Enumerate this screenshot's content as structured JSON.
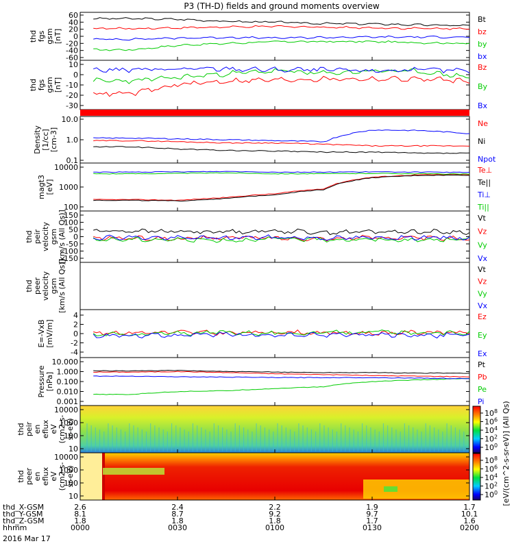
{
  "title": "P3 (TH-D) fields and ground moments overview",
  "date_label": "2016 Mar 17",
  "colors": {
    "black": "#000000",
    "red": "#ff0000",
    "green": "#00cc00",
    "blue": "#0000ff"
  },
  "panels": [
    {
      "id": "fgs-gsm",
      "ylabel": [
        "thd",
        "fgs",
        "gsm",
        "[nT]"
      ],
      "ticks": [
        "60",
        "40",
        "20",
        "0",
        "-20",
        "-40",
        "-60"
      ],
      "legend": [
        {
          "label": "Bt",
          "color": "black"
        },
        {
          "label": "bz",
          "color": "red"
        },
        {
          "label": "by",
          "color": "green"
        },
        {
          "label": "bx",
          "color": "blue"
        }
      ]
    },
    {
      "id": "fgs-dsl",
      "ylabel": [
        "thd",
        "fgs",
        "gsm",
        "[nT]"
      ],
      "ticks": [
        "10",
        "0",
        "-10",
        "-20",
        "-30"
      ],
      "legend": [
        {
          "label": "Bz",
          "color": "red"
        },
        {
          "label": "By",
          "color": "green"
        },
        {
          "label": "Bx",
          "color": "blue"
        }
      ]
    },
    {
      "id": "density",
      "ylabel": [
        "Density",
        "[1/cc]",
        "[cm-3]"
      ],
      "ticks": [
        "10.0",
        "1.0",
        "0.1"
      ],
      "legend": [
        {
          "label": "Ne",
          "color": "red"
        },
        {
          "label": "Ni",
          "color": "black"
        },
        {
          "label": "Npot",
          "color": "blue"
        }
      ]
    },
    {
      "id": "temperature",
      "ylabel": [
        "magt3",
        "[eV]"
      ],
      "ticks": [
        "10000",
        "1000",
        "100"
      ],
      "legend": [
        {
          "label": "Te⊥",
          "color": "red"
        },
        {
          "label": "Te||",
          "color": "black"
        },
        {
          "label": "Ti⊥",
          "color": "blue"
        },
        {
          "label": "Ti||",
          "color": "green"
        }
      ]
    },
    {
      "id": "peir-velocity",
      "ylabel": [
        "thd",
        "peir",
        "velocity",
        "gsm",
        "[km/s (All Qs)]"
      ],
      "ticks": [
        "150",
        "100",
        "50",
        "0",
        "-50",
        "-100",
        "-150"
      ],
      "legend": [
        {
          "label": "Vt",
          "color": "black"
        },
        {
          "label": "Vz",
          "color": "red"
        },
        {
          "label": "Vy",
          "color": "green"
        },
        {
          "label": "Vx",
          "color": "blue"
        }
      ]
    },
    {
      "id": "peer-velocity",
      "ylabel": [
        "thd",
        "peer",
        "velocity",
        "gsm",
        "[km/s (All Qs)]"
      ],
      "ticks": [],
      "legend": [
        {
          "label": "Vt",
          "color": "black"
        },
        {
          "label": "Vz",
          "color": "red"
        },
        {
          "label": "Vy",
          "color": "green"
        },
        {
          "label": "Vx",
          "color": "blue"
        }
      ]
    },
    {
      "id": "efield",
      "ylabel": [
        "E=-VxB",
        "[mV/m]"
      ],
      "ticks": [
        "4",
        "2",
        "0",
        "-2",
        "-4"
      ],
      "legend": [
        {
          "label": "Ez",
          "color": "red"
        },
        {
          "label": "Ey",
          "color": "green"
        },
        {
          "label": "Ex",
          "color": "blue"
        }
      ]
    },
    {
      "id": "pressure",
      "ylabel": [
        "Pressure",
        "[nPa]"
      ],
      "ticks": [
        "10.000",
        "1.000",
        "0.100",
        "0.010",
        "0.001"
      ],
      "legend": [
        {
          "label": "Pt",
          "color": "black"
        },
        {
          "label": "Pb",
          "color": "red"
        },
        {
          "label": "Pe",
          "color": "green"
        },
        {
          "label": "Pi",
          "color": "blue"
        }
      ]
    },
    {
      "id": "peir-eflux",
      "ylabel": [
        "thd",
        "peir",
        "en",
        "eflux",
        "eV",
        "(cm2-s-",
        "sr-eV)"
      ],
      "ticks": [
        "10000",
        "1000",
        "100",
        "10"
      ],
      "legend": []
    },
    {
      "id": "peer-eflux",
      "ylabel": [
        "thd",
        "peer",
        "en",
        "eflux",
        "eV",
        "(cm2-s-",
        "sr-eV)"
      ],
      "ticks": [
        "10000",
        "1000",
        "100",
        "10"
      ],
      "legend": []
    }
  ],
  "colorbar": {
    "label": "[eV/(cm^2-s-sr-eV)] (All Qs)",
    "upper_ticks": [
      "10^8",
      "10^6",
      "10^4",
      "10^2",
      "10^0"
    ],
    "lower_ticks": [
      "10^8",
      "10^6",
      "10^4",
      "10^2",
      "10^0"
    ]
  },
  "footer": {
    "row_labels": [
      "thd_X-GSM",
      "thd_Y-GSM",
      "thd_Z-GSM",
      "hhmm"
    ],
    "columns": [
      {
        "x": "2.6",
        "y": "8.1",
        "z": "1.8",
        "t": "0000"
      },
      {
        "x": "2.4",
        "y": "8.7",
        "z": "1.8",
        "t": "0030"
      },
      {
        "x": "2.2",
        "y": "9.2",
        "z": "1.8",
        "t": "0100"
      },
      {
        "x": "1.9",
        "y": "9.7",
        "z": "1.7",
        "t": "0130"
      },
      {
        "x": "1.7",
        "y": "10.1",
        "z": "1.6",
        "t": "0200"
      }
    ]
  },
  "chart_data": [
    {
      "type": "line",
      "title": "P3 (TH-D) fields and ground moments overview",
      "ylabel": "thd fgs gsm [nT]",
      "ylim": [
        -60,
        60
      ],
      "x": [
        "0000",
        "0015",
        "0030",
        "0045",
        "0100",
        "0115",
        "0130",
        "0145",
        "0200"
      ],
      "series": [
        {
          "name": "Bt",
          "values": [
            null,
            50,
            48,
            42,
            40,
            36,
            35,
            32,
            30
          ]
        },
        {
          "name": "bz",
          "values": [
            null,
            22,
            24,
            26,
            28,
            26,
            24,
            22,
            22
          ]
        },
        {
          "name": "by",
          "values": [
            null,
            -38,
            -25,
            -20,
            -15,
            -15,
            -15,
            -18,
            -20
          ]
        },
        {
          "name": "bx",
          "values": [
            null,
            -8,
            -5,
            -3,
            -5,
            -3,
            -2,
            -2,
            -2
          ]
        }
      ]
    },
    {
      "type": "line",
      "ylabel": "thd fgs gsm [nT]",
      "ylim": [
        -35,
        10
      ],
      "x": [
        "0000",
        "0015",
        "0030",
        "0045",
        "0100",
        "0115",
        "0130",
        "0145",
        "0200"
      ],
      "series": [
        {
          "name": "Bz",
          "values": [
            null,
            -22,
            -12,
            -8,
            -7,
            -6,
            -6,
            -6,
            -8
          ]
        },
        {
          "name": "By",
          "values": [
            null,
            -8,
            -4,
            0,
            3,
            0,
            3,
            2,
            -4
          ]
        },
        {
          "name": "Bx",
          "values": [
            null,
            4,
            5,
            5,
            4,
            4,
            3,
            4,
            3
          ]
        }
      ]
    },
    {
      "type": "line",
      "ylabel": "Density [1/cc] [cm-3]",
      "ylim": [
        0.1,
        10
      ],
      "yscale": "log",
      "x": [
        "0000",
        "0015",
        "0030",
        "0045",
        "0100",
        "0115",
        "0130",
        "0145",
        "0200"
      ],
      "series": [
        {
          "name": "Ne",
          "values": [
            null,
            0.9,
            0.8,
            0.7,
            0.7,
            0.6,
            0.5,
            0.5,
            0.5
          ]
        },
        {
          "name": "Ni",
          "values": [
            null,
            0.45,
            0.35,
            0.3,
            0.28,
            0.25,
            0.25,
            0.22,
            0.22
          ]
        },
        {
          "name": "Npot",
          "values": [
            null,
            1.2,
            1.1,
            1.0,
            0.9,
            0.8,
            3.0,
            2.8,
            2.0
          ]
        }
      ]
    },
    {
      "type": "line",
      "ylabel": "magt3 [eV]",
      "ylim": [
        40,
        10000
      ],
      "yscale": "log",
      "x": [
        "0000",
        "0015",
        "0030",
        "0045",
        "0100",
        "0115",
        "0130",
        "0145",
        "0200"
      ],
      "series": [
        {
          "name": "Te⊥",
          "values": [
            null,
            110,
            100,
            150,
            250,
            500,
            2500,
            3500,
            3500
          ]
        },
        {
          "name": "Te||",
          "values": [
            null,
            100,
            90,
            130,
            220,
            450,
            2300,
            3200,
            3300
          ]
        },
        {
          "name": "Ti⊥",
          "values": [
            null,
            5000,
            5200,
            5500,
            5000,
            5000,
            5200,
            5000,
            4800
          ]
        },
        {
          "name": "Ti||",
          "values": [
            null,
            4000,
            4200,
            4500,
            4000,
            4000,
            4200,
            4000,
            3800
          ]
        }
      ]
    },
    {
      "type": "line",
      "ylabel": "thd peir velocity gsm [km/s (All Qs)]",
      "ylim": [
        -150,
        150
      ],
      "x": [
        "0000",
        "0015",
        "0030",
        "0045",
        "0100",
        "0115",
        "0130",
        "0145",
        "0200"
      ],
      "series": [
        {
          "name": "Vt",
          "values": [
            null,
            40,
            35,
            35,
            40,
            30,
            35,
            35,
            30
          ]
        },
        {
          "name": "Vz",
          "values": [
            null,
            -10,
            -15,
            -5,
            -10,
            -15,
            -5,
            -10,
            -15
          ]
        },
        {
          "name": "Vy",
          "values": [
            null,
            -20,
            -20,
            -25,
            -15,
            -20,
            -20,
            -25,
            -15
          ]
        },
        {
          "name": "Vx",
          "values": [
            null,
            -5,
            -10,
            -8,
            -5,
            -10,
            -8,
            -5,
            -10
          ]
        }
      ]
    },
    {
      "type": "line",
      "ylabel": "thd peer velocity gsm [km/s (All Qs)]",
      "series": []
    },
    {
      "type": "line",
      "ylabel": "E=-VxB [mV/m]",
      "ylim": [
        -4,
        4
      ],
      "x": [
        "0000",
        "0015",
        "0030",
        "0045",
        "0100",
        "0115",
        "0130",
        "0145",
        "0200"
      ],
      "series": [
        {
          "name": "Ez",
          "values": [
            null,
            0.2,
            0.3,
            0.1,
            0.3,
            0.2,
            0.1,
            0.3,
            0.2
          ]
        },
        {
          "name": "Ey",
          "values": [
            null,
            -0.2,
            0.1,
            0.3,
            0.0,
            0.2,
            0.4,
            0.0,
            0.2
          ]
        },
        {
          "name": "Ex",
          "values": [
            null,
            -0.4,
            -0.3,
            -0.2,
            -0.4,
            -0.3,
            -0.2,
            -0.4,
            -0.3
          ]
        }
      ]
    },
    {
      "type": "line",
      "ylabel": "Pressure [nPa]",
      "ylim": [
        0.001,
        10
      ],
      "yscale": "log",
      "x": [
        "0000",
        "0015",
        "0030",
        "0045",
        "0100",
        "0115",
        "0130",
        "0145",
        "0200"
      ],
      "series": [
        {
          "name": "Pt",
          "values": [
            null,
            1.2,
            1.3,
            1.0,
            0.9,
            0.8,
            0.8,
            0.7,
            0.7
          ]
        },
        {
          "name": "Pb",
          "values": [
            null,
            0.9,
            1.0,
            0.8,
            0.6,
            0.5,
            0.4,
            0.35,
            0.3
          ]
        },
        {
          "name": "Pe",
          "values": [
            null,
            0.005,
            0.01,
            0.012,
            0.02,
            0.03,
            0.1,
            0.15,
            0.2
          ]
        },
        {
          "name": "Pi",
          "values": [
            null,
            0.35,
            0.3,
            0.28,
            0.25,
            0.25,
            0.25,
            0.22,
            0.2
          ]
        }
      ]
    },
    {
      "type": "heatmap",
      "ylabel": "thd peir en eflux eV (cm2-s-sr-eV)",
      "ylim": [
        10,
        20000
      ],
      "yscale": "log",
      "zlabel": "[eV/(cm^2-s-sr-eV)] (All Qs)",
      "zlim": [
        "10^0",
        "10^8"
      ]
    },
    {
      "type": "heatmap",
      "ylabel": "thd peer en eflux eV (cm2-s-sr-eV)",
      "ylim": [
        10,
        20000
      ],
      "yscale": "log",
      "zlabel": "[eV/(cm^2-s-sr-eV)] (All Qs)",
      "zlim": [
        "10^0",
        "10^8"
      ]
    }
  ]
}
